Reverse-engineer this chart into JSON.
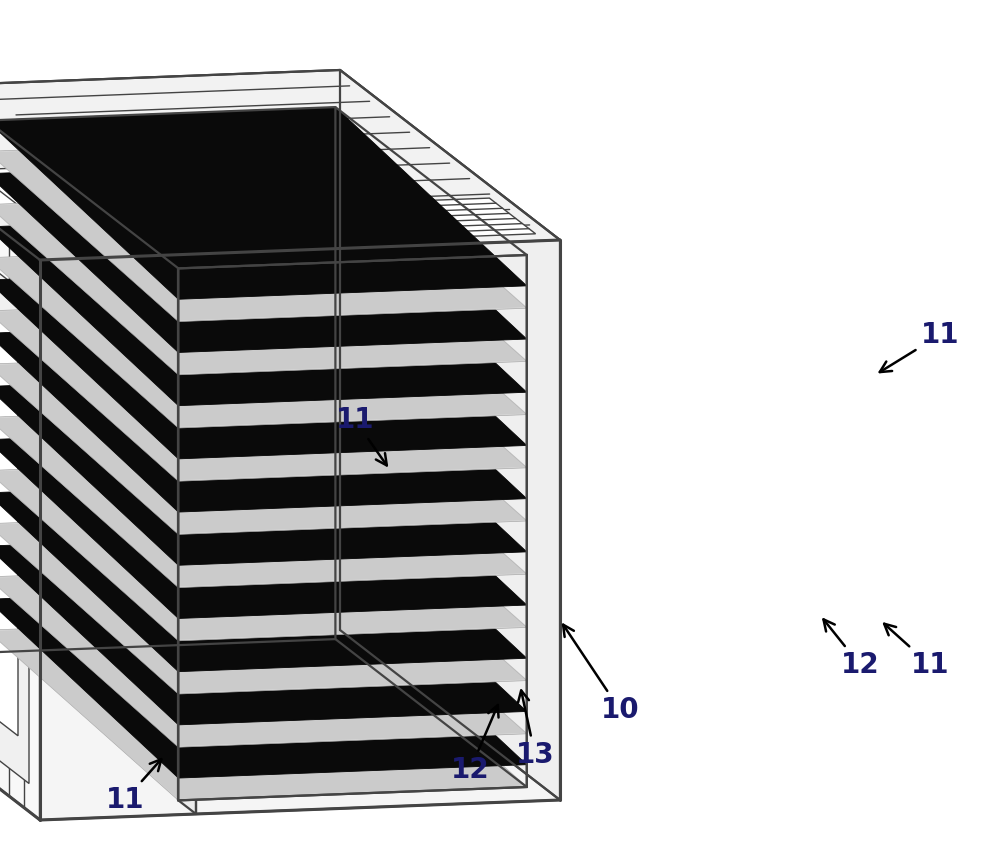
{
  "bg_color": "#ffffff",
  "line_color": "#444444",
  "lw_thin": 1.0,
  "lw_med": 1.6,
  "lw_thick": 2.2,
  "figsize": [
    10.0,
    8.67
  ],
  "dpi": 100,
  "label_color": "#1a1a6e",
  "label_fontsize": 20,
  "label_fontweight": "bold"
}
